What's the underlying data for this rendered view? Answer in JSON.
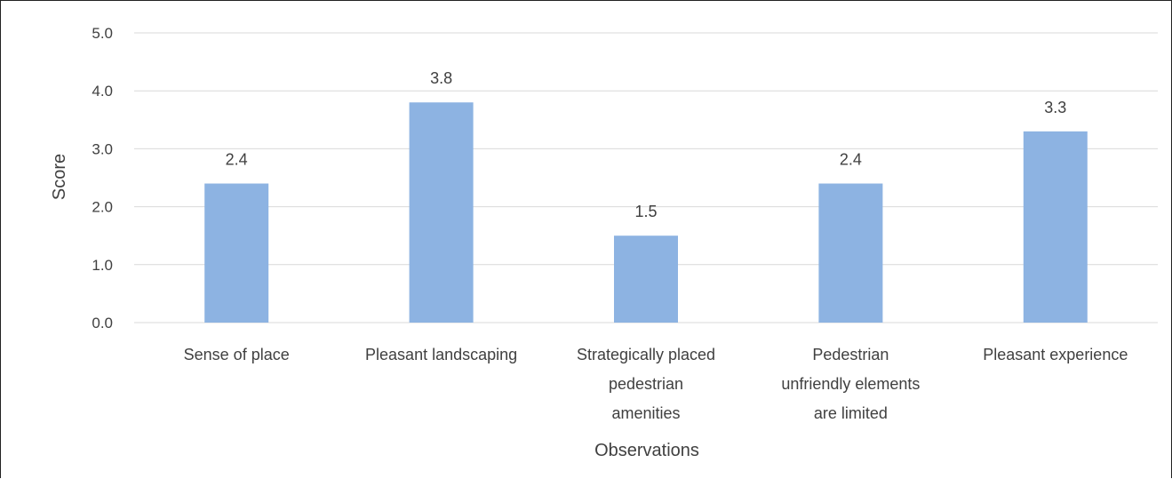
{
  "chart_data": {
    "type": "bar",
    "title": "",
    "xlabel": "Observations",
    "ylabel": "Score",
    "ylim": [
      0,
      5
    ],
    "yticks": [
      "0.0",
      "1.0",
      "2.0",
      "3.0",
      "4.0",
      "5.0"
    ],
    "grid": true,
    "categories": [
      [
        "Sense of place"
      ],
      [
        "Pleasant landscaping"
      ],
      [
        "Strategically placed",
        "pedestrian",
        "amenities"
      ],
      [
        "Pedestrian",
        "unfriendly elements",
        "are limited"
      ],
      [
        "Pleasant experience"
      ]
    ],
    "values": [
      2.4,
      3.8,
      1.5,
      2.4,
      3.3
    ],
    "data_labels": [
      "2.4",
      "3.8",
      "1.5",
      "2.4",
      "3.3"
    ],
    "bar_color": "#8db3e2",
    "grid_color": "#d9d9d9"
  }
}
